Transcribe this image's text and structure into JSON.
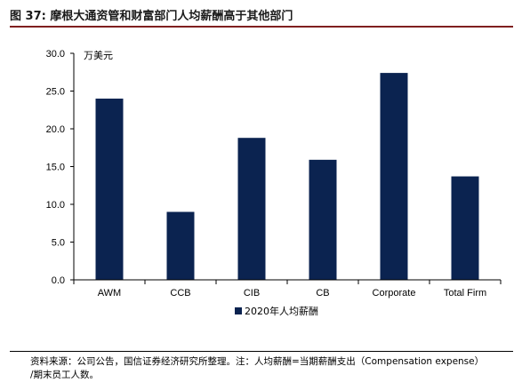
{
  "figure": {
    "title": "图 37: 摩根大通资管和财富部门人均薪酬高于其他部门",
    "source_line1": "资料来源：公司公告，国信证券经济研究所整理。注：人均薪酬=当期薪酬支出（Compensation expense）",
    "source_line2": "/期末员工人数。"
  },
  "chart_data": {
    "type": "bar",
    "unit_label": "万美元",
    "categories": [
      "AWM",
      "CCB",
      "CIB",
      "CB",
      "Corporate",
      "Total Firm"
    ],
    "series": [
      {
        "name": "2020年人均薪酬",
        "values": [
          24.0,
          9.0,
          18.8,
          15.9,
          27.4,
          13.7
        ]
      }
    ],
    "ylim": [
      0,
      30
    ],
    "yticks": [
      "0.0",
      "5.0",
      "10.0",
      "15.0",
      "20.0",
      "25.0",
      "30.0"
    ],
    "legend_position": "bottom",
    "grid": false,
    "colors": {
      "bar": "#0b2350",
      "axis": "#000000"
    }
  }
}
